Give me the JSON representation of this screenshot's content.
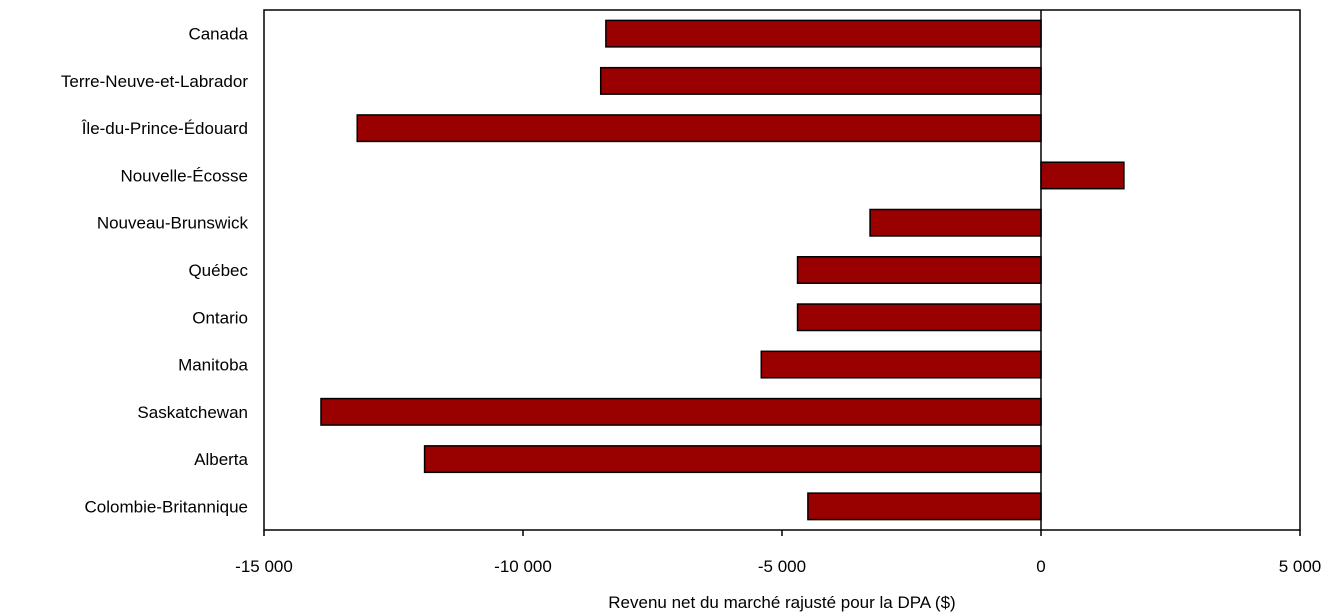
{
  "chart_data": {
    "type": "bar",
    "orientation": "horizontal",
    "categories": [
      "Canada",
      "Terre-Neuve-et-Labrador",
      "Île-du-Prince-Édouard",
      "Nouvelle-Écosse",
      "Nouveau-Brunswick",
      "Québec",
      "Ontario",
      "Manitoba",
      "Saskatchewan",
      "Alberta",
      "Colombie-Britannique"
    ],
    "values": [
      -8400,
      -8500,
      -13200,
      1600,
      -3300,
      -4700,
      -4700,
      -5400,
      -13900,
      -11900,
      -4500
    ],
    "xlabel": "Revenu net du marché rajusté pour la DPA ($)",
    "xlim": [
      -15000,
      5000
    ],
    "xticks": [
      -15000,
      -10000,
      -5000,
      0,
      5000
    ],
    "xtick_labels": [
      "-15 000",
      "-10 000",
      "-5 000",
      "0",
      "5 000"
    ],
    "bar_color": "#990000",
    "grid": false,
    "legend": "none"
  }
}
